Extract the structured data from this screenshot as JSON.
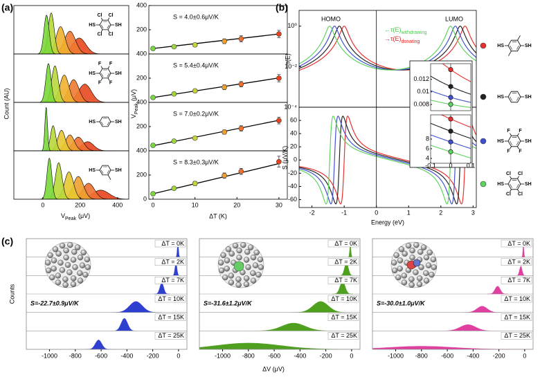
{
  "panel_labels": [
    "(a)",
    "(b)",
    "(c)"
  ],
  "chart_data": [
    {
      "type": "gaussian-stack",
      "ylabel": "Count (AU)",
      "xlabel": {
        "symbol": "V",
        "subscript": "Peak",
        "unit": "(μV)"
      },
      "xlim": [
        -155,
        460
      ],
      "xticks": [
        0,
        200,
        400
      ],
      "panels": [
        {
          "molecule": {
            "left": "HS",
            "right": "SH",
            "substituents": [
              "Cl",
              "Cl",
              "Cl",
              "Cl"
            ]
          },
          "peaks": [
            {
              "center": 20,
              "width": 14,
              "height": 0.85,
              "color": "#7ad83a"
            },
            {
              "center": 45,
              "width": 16,
              "height": 0.9,
              "color": "#b8d83a"
            },
            {
              "center": 95,
              "width": 24,
              "height": 0.6,
              "color": "#f0b030"
            },
            {
              "center": 145,
              "width": 30,
              "height": 0.5,
              "color": "#f07a30"
            },
            {
              "center": 195,
              "width": 35,
              "height": 0.35,
              "color": "#e8481e"
            }
          ]
        },
        {
          "molecule": {
            "left": "HS",
            "right": "SH",
            "substituents": [
              "F",
              "F",
              "F",
              "F"
            ]
          },
          "peaks": [
            {
              "center": 30,
              "width": 14,
              "height": 0.85,
              "color": "#7ad83a"
            },
            {
              "center": 65,
              "width": 18,
              "height": 0.8,
              "color": "#b8d83a"
            },
            {
              "center": 115,
              "width": 24,
              "height": 0.6,
              "color": "#f0b030"
            },
            {
              "center": 165,
              "width": 28,
              "height": 0.5,
              "color": "#f07a30"
            },
            {
              "center": 225,
              "width": 35,
              "height": 0.4,
              "color": "#e8481e"
            }
          ]
        },
        {
          "molecule": {
            "left": "HS",
            "right": "SH"
          },
          "peaks": [
            {
              "center": 18,
              "width": 7,
              "height": 0.95,
              "color": "#7ad83a"
            },
            {
              "center": 55,
              "width": 14,
              "height": 0.55,
              "color": "#b8d83a"
            },
            {
              "center": 100,
              "width": 20,
              "height": 0.45,
              "color": "#e8c830"
            },
            {
              "center": 145,
              "width": 24,
              "height": 0.35,
              "color": "#f0a030"
            },
            {
              "center": 190,
              "width": 28,
              "height": 0.3,
              "color": "#f07030"
            },
            {
              "center": 240,
              "width": 32,
              "height": 0.2,
              "color": "#e8421e"
            }
          ]
        },
        {
          "molecule": {
            "left": "HS",
            "right": "SH"
          },
          "peaks": [
            {
              "center": 35,
              "width": 13,
              "height": 0.9,
              "color": "#7ad83a"
            },
            {
              "center": 85,
              "width": 18,
              "height": 0.8,
              "color": "#b8d83a"
            },
            {
              "center": 140,
              "width": 24,
              "height": 0.6,
              "color": "#e8c830"
            },
            {
              "center": 190,
              "width": 28,
              "height": 0.5,
              "color": "#f0a030"
            },
            {
              "center": 245,
              "width": 32,
              "height": 0.35,
              "color": "#f07030"
            },
            {
              "center": 310,
              "width": 45,
              "height": 0.2,
              "color": "#e8421e"
            }
          ]
        }
      ]
    },
    {
      "type": "scatter",
      "xlabel": "ΔT (K)",
      "ylabel": {
        "symbol": "V",
        "subscript": "Peak",
        "unit": "(μV)"
      },
      "xlim": [
        -1,
        32
      ],
      "xticks": [
        0,
        10,
        20,
        30
      ],
      "ylim": [
        0,
        400
      ],
      "x": [
        0,
        5,
        10,
        17,
        21,
        30
      ],
      "colors": [
        "#78d83c",
        "#9fd83c",
        "#c8d43a",
        "#f0a030",
        "#f07030",
        "#e8421e"
      ],
      "panels": [
        {
          "annotation": "S = 4.0±0.6μV/K",
          "yticks": [
            200,
            400
          ],
          "values": [
            45,
            60,
            75,
            105,
            125,
            165
          ],
          "errors": [
            10,
            12,
            15,
            20,
            25,
            30
          ],
          "fit": {
            "intercept": 45,
            "slope": 4.0
          }
        },
        {
          "annotation": "S = 5.4±0.4μV/K",
          "yticks": [
            200,
            400
          ],
          "values": [
            40,
            70,
            95,
            125,
            150,
            200
          ],
          "errors": [
            10,
            12,
            15,
            20,
            22,
            30
          ],
          "fit": {
            "intercept": 40,
            "slope": 5.4
          }
        },
        {
          "annotation": "S = 7.0±0.2μV/K",
          "yticks": [
            200,
            400
          ],
          "values": [
            45,
            80,
            105,
            155,
            185,
            250
          ],
          "errors": [
            8,
            10,
            12,
            18,
            22,
            28
          ],
          "fit": {
            "intercept": 42,
            "slope": 7.0
          }
        },
        {
          "annotation": "S = 8.3±0.3μV/K",
          "yticks": [
            0,
            200,
            400
          ],
          "values": [
            45,
            90,
            130,
            195,
            230,
            310
          ],
          "errors": [
            8,
            12,
            18,
            22,
            25,
            45
          ],
          "fit": {
            "intercept": 45,
            "slope": 8.3
          }
        }
      ]
    },
    {
      "type": "line",
      "xlabel": "Energy (eV)",
      "xlim": [
        -2.4,
        3.1
      ],
      "xticks": [
        -2,
        -1,
        0,
        1,
        2,
        3
      ],
      "annotations": {
        "homo": "HOMO",
        "lumo": "LUMO"
      },
      "legend": [
        {
          "arrow": "←",
          "symbol": "τ(E)",
          "subscript": "withdrawing",
          "color": "#3fcf3f"
        },
        {
          "arrow": "→",
          "symbol": "τ(E)",
          "subscript": "donating",
          "color": "#e02020"
        }
      ],
      "broadening": 0.11,
      "series": [
        {
          "color": "#e83030",
          "resonances": [
            -1.0,
            2.75
          ],
          "molecule": {
            "left": "HS",
            "right": "SH"
          }
        },
        {
          "color": "#222222",
          "resonances": [
            -1.15,
            2.6
          ],
          "molecule": {
            "left": "HS",
            "right": "SH"
          }
        },
        {
          "color": "#4050d0",
          "resonances": [
            -1.3,
            2.45
          ],
          "molecule": {
            "left": "HS",
            "right": "SH",
            "substituents": [
              "F",
              "F",
              "F",
              "F"
            ]
          }
        },
        {
          "color": "#5fd35f",
          "resonances": [
            -1.45,
            2.3
          ],
          "molecule": {
            "left": "HS",
            "right": "SH",
            "substituents": [
              "Cl",
              "Cl",
              "Cl",
              "Cl"
            ]
          }
        }
      ],
      "tau": {
        "ylabel": "τ(E)",
        "log": true,
        "ylim": [
          0.0001,
          6
        ],
        "yticks": [
          {
            "value": 1,
            "label": "10⁰"
          },
          {
            "value": 0.01,
            "label": "10⁻²"
          },
          {
            "value": 0.0001,
            "label": "10⁻⁴"
          }
        ]
      },
      "seebeck": {
        "ylabel": "S (μV/K)",
        "ylim": [
          -72,
          80
        ],
        "yticks": [
          -60,
          -40,
          -20,
          0,
          20,
          40,
          60
        ]
      },
      "inset": {
        "xlim": [
          -0.1,
          0.1
        ],
        "xticks": [
          -0.1,
          0,
          0.1
        ],
        "tau": {
          "ylim": [
            0.007,
            0.0145
          ],
          "yticks": [
            0.008,
            0.01,
            0.012
          ]
        },
        "seebeck": {
          "ylim": [
            3,
            13
          ],
          "yticks": [
            4,
            6,
            8
          ]
        }
      }
    },
    {
      "type": "histogram",
      "ylabel": "Counts",
      "xlabel": "ΔV (μV)",
      "xlim": [
        -1180,
        65
      ],
      "xticks": [
        -1000,
        -800,
        -600,
        -400,
        -200,
        0
      ],
      "row_labels": [
        "ΔT = 0K",
        "ΔT = 2K",
        "ΔT = 7K",
        "ΔT = 10K",
        "ΔT = 15K",
        "ΔT = 25K"
      ],
      "columns": [
        {
          "color": "#2f3fd0",
          "annotation": "S=-22.7±0.9μV/K",
          "annotation_color": "#1a237e",
          "peaks": [
            {
              "center": -5,
              "width": 5,
              "height": 0.9
            },
            {
              "center": -20,
              "width": 8,
              "height": 0.8
            },
            {
              "center": -130,
              "width": 15,
              "height": 0.7
            },
            {
              "center": -330,
              "width": 50,
              "height": 0.7
            },
            {
              "center": -420,
              "width": 25,
              "height": 0.8
            },
            {
              "center": -620,
              "width": 25,
              "height": 0.6
            }
          ]
        },
        {
          "color": "#50a020",
          "annotation": "S=-31.6±1.2μV/K",
          "annotation_color": "#2e6b10",
          "peaks": [
            {
              "center": -10,
              "width": 5,
              "height": 0.8
            },
            {
              "center": -40,
              "width": 15,
              "height": 0.8
            },
            {
              "center": -70,
              "width": 20,
              "height": 0.8
            },
            {
              "center": -240,
              "width": 60,
              "height": 0.7
            },
            {
              "center": -450,
              "width": 90,
              "height": 0.5
            },
            {
              "center": -800,
              "width": 250,
              "height": 0.4
            }
          ]
        },
        {
          "color": "#e040a0",
          "annotation": "S=-30.0±1.0μV/K",
          "annotation_color": "#d0207a",
          "peaks": [
            {
              "center": -10,
              "width": 4,
              "height": 0.8
            },
            {
              "center": -30,
              "width": 10,
              "height": 0.6
            },
            {
              "center": -210,
              "width": 20,
              "height": 0.5
            },
            {
              "center": -330,
              "width": 40,
              "height": 0.4
            },
            {
              "center": -440,
              "width": 60,
              "height": 0.4
            },
            {
              "center": -800,
              "width": 250,
              "height": 0.2
            }
          ]
        }
      ]
    }
  ]
}
